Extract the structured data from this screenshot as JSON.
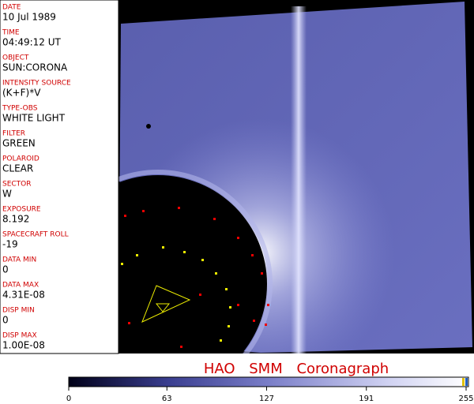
{
  "fields": [
    {
      "label": "DATE",
      "value": "10 Jul 1989"
    },
    {
      "label": "TIME",
      "value": "04:49:12 UT"
    },
    {
      "label": "OBJECT",
      "value": "SUN:CORONA"
    },
    {
      "label": "INTENSITY SOURCE",
      "value": "(K+F)*V"
    },
    {
      "label": "TYPE-OBS",
      "value": "WHITE LIGHT"
    },
    {
      "label": "FILTER",
      "value": "GREEN"
    },
    {
      "label": "POLAROID",
      "value": "CLEAR"
    },
    {
      "label": "SECTOR",
      "value": "W"
    },
    {
      "label": "EXPOSURE",
      "value": "8.192"
    },
    {
      "label": "SPACECRAFT ROLL",
      "value": "-19"
    },
    {
      "label": "DATA MIN",
      "value": "0"
    },
    {
      "label": "DATA MAX",
      "value": "4.31E-08"
    },
    {
      "label": "DISP MIN",
      "value": "0"
    },
    {
      "label": "DISP MAX",
      "value": "1.00E-08"
    }
  ],
  "title": "HAO SMM Coronagraph",
  "colorbar": {
    "range": [
      0,
      255
    ],
    "ticks": [
      0,
      63,
      127,
      191,
      255
    ]
  }
}
